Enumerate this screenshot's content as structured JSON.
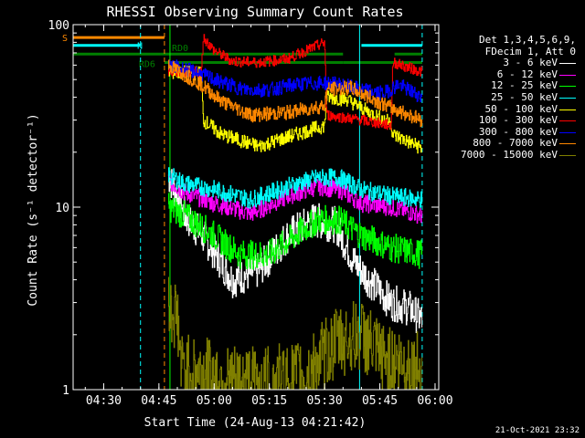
{
  "chart_data": {
    "type": "line",
    "title": "RHESSI Observing Summary Count Rates",
    "xlabel": "Start Time (24-Aug-13 04:21:42)",
    "ylabel": "Count Rate (s⁻¹ detector⁻¹)",
    "yscale": "log",
    "ylim": [
      1,
      100
    ],
    "xlim": [
      "04:21:42",
      "06:01:00"
    ],
    "x_ticks": [
      "04:30",
      "04:45",
      "05:00",
      "05:15",
      "05:30",
      "05:45",
      "06:00"
    ],
    "y_ticks": [
      "1",
      "10",
      "100"
    ],
    "legend_header": [
      "Det 1,3,4,5,6,9,",
      "FDecim 1, Att 0"
    ],
    "legend_position": "right",
    "series": [
      {
        "name": "3 - 6 keV",
        "color": "#ffffff",
        "noise": 0.1,
        "points": [
          [
            "04:47:30",
            15
          ],
          [
            "04:52:00",
            9
          ],
          [
            "04:58:00",
            6.5
          ],
          [
            "05:05:00",
            4.0
          ],
          [
            "05:12:00",
            4.5
          ],
          [
            "05:20:00",
            7
          ],
          [
            "05:27:00",
            8.5
          ],
          [
            "05:33:00",
            8
          ],
          [
            "05:38:00",
            5
          ],
          [
            "05:42:00",
            4.0
          ],
          [
            "05:48:00",
            3.0
          ],
          [
            "05:53:00",
            2.8
          ],
          [
            "05:56:30",
            2.4
          ]
        ]
      },
      {
        "name": "6 - 12 keV",
        "color": "#ff00ff",
        "noise": 0.05,
        "points": [
          [
            "04:47:30",
            14
          ],
          [
            "04:52:00",
            12
          ],
          [
            "05:00:00",
            10.5
          ],
          [
            "05:10:00",
            9.2
          ],
          [
            "05:20:00",
            11.5
          ],
          [
            "05:28:00",
            13
          ],
          [
            "05:34:00",
            12.5
          ],
          [
            "05:40:00",
            10.5
          ],
          [
            "05:48:00",
            10
          ],
          [
            "05:56:30",
            9
          ]
        ]
      },
      {
        "name": "12 - 25 keV",
        "color": "#00ff00",
        "noise": 0.08,
        "points": [
          [
            "04:47:30",
            10
          ],
          [
            "04:52:00",
            9
          ],
          [
            "05:00:00",
            7
          ],
          [
            "05:07:00",
            5.5
          ],
          [
            "05:15:00",
            5.5
          ],
          [
            "05:22:00",
            7
          ],
          [
            "05:28:00",
            8.5
          ],
          [
            "05:34:00",
            8.5
          ],
          [
            "05:40:00",
            7
          ],
          [
            "05:48:00",
            6
          ],
          [
            "05:56:30",
            5.5
          ]
        ]
      },
      {
        "name": "25 - 50 keV",
        "color": "#00ffff",
        "noise": 0.05,
        "points": [
          [
            "04:47:30",
            15
          ],
          [
            "04:52:00",
            13.5
          ],
          [
            "05:00:00",
            12.5
          ],
          [
            "05:10:00",
            11
          ],
          [
            "05:20:00",
            13
          ],
          [
            "05:28:00",
            14.5
          ],
          [
            "05:34:00",
            14.5
          ],
          [
            "05:40:00",
            12.5
          ],
          [
            "05:48:00",
            11.5
          ],
          [
            "05:56:30",
            11
          ]
        ]
      },
      {
        "name": "50 - 100 keV",
        "color": "#ffff00",
        "noise": 0.04,
        "points": [
          [
            "04:47:30",
            55
          ],
          [
            "04:56:30",
            54
          ],
          [
            "04:57:00",
            30
          ],
          [
            "05:02:00",
            25
          ],
          [
            "05:12:00",
            21.5
          ],
          [
            "05:22:00",
            25
          ],
          [
            "05:30:00",
            28
          ],
          [
            "05:30:30",
            40
          ],
          [
            "05:36:00",
            39
          ],
          [
            "05:42:00",
            33
          ],
          [
            "05:48:00",
            29
          ],
          [
            "05:48:30",
            25
          ],
          [
            "05:56:30",
            21
          ]
        ]
      },
      {
        "name": "100 - 300 keV",
        "color": "#ff0000",
        "noise": 0.03,
        "points": [
          [
            "04:47:30",
            55
          ],
          [
            "04:56:30",
            55
          ],
          [
            "04:57:00",
            85
          ],
          [
            "05:00:00",
            72
          ],
          [
            "05:05:00",
            63
          ],
          [
            "05:12:00",
            62
          ],
          [
            "05:20:00",
            65
          ],
          [
            "05:30:00",
            80
          ],
          [
            "05:30:30",
            32
          ],
          [
            "05:40:00",
            30
          ],
          [
            "05:48:00",
            28
          ],
          [
            "05:48:30",
            62
          ],
          [
            "05:56:30",
            55
          ]
        ]
      },
      {
        "name": "300 - 800 keV",
        "color": "#0000ff",
        "noise": 0.04,
        "points": [
          [
            "04:47:30",
            60
          ],
          [
            "04:55:00",
            55
          ],
          [
            "05:00:00",
            50
          ],
          [
            "05:08:00",
            44
          ],
          [
            "05:15:00",
            44
          ],
          [
            "05:22:00",
            47
          ],
          [
            "05:30:00",
            48
          ],
          [
            "05:34:00",
            47
          ],
          [
            "05:40:00",
            44
          ],
          [
            "05:46:00",
            42
          ],
          [
            "05:50:00",
            47
          ],
          [
            "05:56:30",
            40
          ]
        ]
      },
      {
        "name": "800 - 7000 keV",
        "color": "#ff8800",
        "noise": 0.04,
        "points": [
          [
            "04:47:30",
            60
          ],
          [
            "04:56:30",
            47
          ],
          [
            "05:02:00",
            38
          ],
          [
            "05:10:00",
            32
          ],
          [
            "05:20:00",
            33
          ],
          [
            "05:30:00",
            36
          ],
          [
            "05:30:30",
            44
          ],
          [
            "05:37:00",
            45
          ],
          [
            "05:42:00",
            40
          ],
          [
            "05:48:00",
            35
          ],
          [
            "05:56:30",
            30
          ]
        ]
      },
      {
        "name": "7000 - 15000 keV",
        "color": "#808000",
        "noise": 0.2,
        "points": [
          [
            "04:47:30",
            2.8
          ],
          [
            "04:50:00",
            2.5
          ],
          [
            "04:51:00",
            1.3
          ],
          [
            "05:00:00",
            1.2
          ],
          [
            "05:05:00",
            1.1
          ],
          [
            "05:15:00",
            1.1
          ],
          [
            "05:25:00",
            1.2
          ],
          [
            "05:33:00",
            1.8
          ],
          [
            "05:40:00",
            2.0
          ],
          [
            "05:45:00",
            1.5
          ],
          [
            "05:50:00",
            1.4
          ],
          [
            "05:56:30",
            1.3
          ]
        ]
      }
    ],
    "flags": [
      {
        "label": "S",
        "color": "#ff8800",
        "value": 85,
        "segments": [
          [
            "04:21:42",
            "04:46:30"
          ]
        ]
      },
      {
        "label": "N",
        "color": "#00ffff",
        "value": 77,
        "segments": [
          [
            "04:21:42",
            "04:40:00"
          ],
          [
            "05:40:00",
            "05:56:30"
          ]
        ]
      },
      {
        "label": "RD0",
        "color": "#008000",
        "value": 69,
        "segments": [
          [
            "04:21:42",
            "05:35:00"
          ],
          [
            "05:49:00",
            "05:56:30"
          ]
        ]
      },
      {
        "label": "RD6",
        "color": "#008000",
        "value": 62,
        "segments": [
          [
            "04:46:30",
            "05:35:00"
          ],
          [
            "05:35:00",
            "05:56:30"
          ]
        ]
      }
    ],
    "vlines": [
      {
        "time": "04:40:00",
        "color": "#00ffff",
        "style": "dashed"
      },
      {
        "time": "04:46:30",
        "color": "#ff8800",
        "style": "dashed"
      },
      {
        "time": "04:48:00",
        "color": "#00ff00",
        "style": "solid"
      },
      {
        "time": "05:39:30",
        "color": "#00ffff",
        "style": "solid"
      },
      {
        "time": "05:56:30",
        "color": "#00ffff",
        "style": "dashed"
      }
    ]
  },
  "footer": {
    "timestamp": "21-Oct-2021 23:32"
  },
  "colors": {
    "background": "#000000",
    "axis": "#ffffff"
  }
}
